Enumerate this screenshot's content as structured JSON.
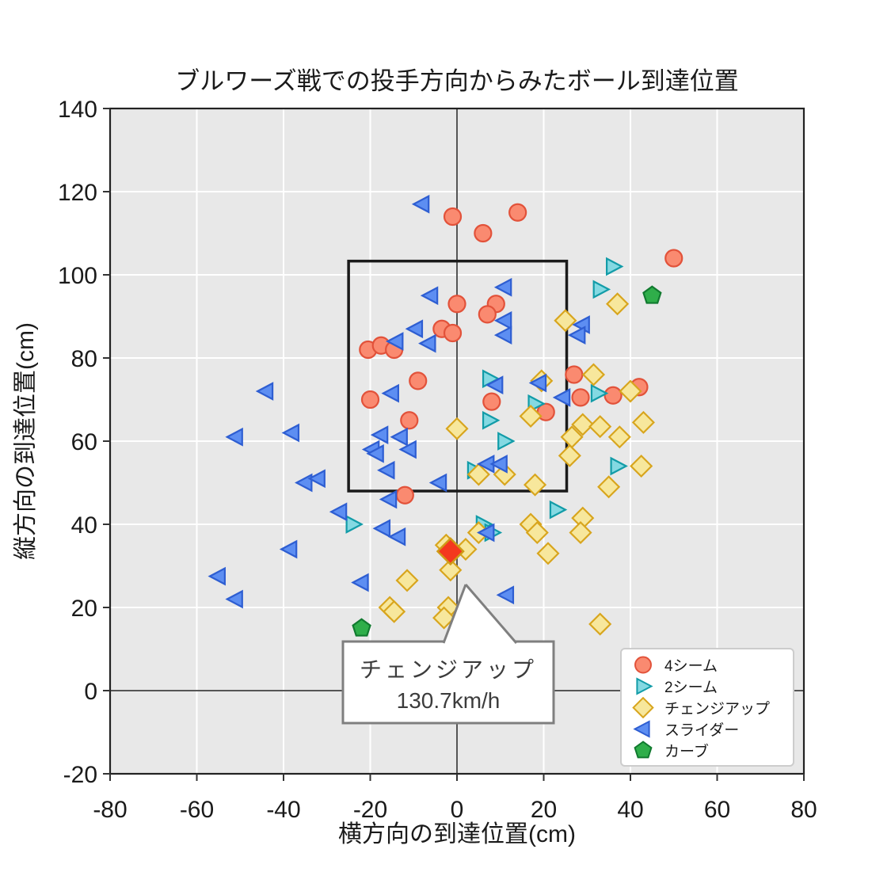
{
  "tooltip": {
    "line1": "チェンジアップ",
    "line2": "130.7km/h"
  },
  "chart_data": {
    "type": "scatter",
    "title": "ブルワーズ戦での投手方向からみたボール到達位置",
    "xlabel": "横方向の到達位置(cm)",
    "ylabel": "縦方向の到達位置(cm)",
    "xlim": [
      -80,
      80
    ],
    "ylim": [
      -20,
      140
    ],
    "xticks": [
      -80,
      -60,
      -40,
      -20,
      0,
      20,
      40,
      60,
      80
    ],
    "yticks": [
      -20,
      0,
      20,
      40,
      60,
      80,
      100,
      120,
      140
    ],
    "grid": true,
    "legend_position": "lower right",
    "plot_background": "#e8e8e8",
    "grid_color": "#ffffff",
    "zero_line_color": "#555555",
    "strike_zone": {
      "x": [
        -25,
        25.3
      ],
      "y": [
        48,
        103.3
      ],
      "color": "#1a1a1a"
    },
    "series": [
      {
        "name": "4シーム",
        "shape": "circle",
        "fill": "#fa8a70",
        "edge": "#e2523a",
        "points": [
          [
            -1,
            114
          ],
          [
            14,
            115
          ],
          [
            6,
            110
          ],
          [
            50,
            104
          ],
          [
            0,
            93
          ],
          [
            9,
            93
          ],
          [
            7,
            90.5
          ],
          [
            -3.5,
            87
          ],
          [
            -1,
            86
          ],
          [
            -20.5,
            82
          ],
          [
            -17.5,
            83
          ],
          [
            -14.5,
            82
          ],
          [
            27,
            76
          ],
          [
            -9,
            74.5
          ],
          [
            8,
            69.5
          ],
          [
            36,
            71
          ],
          [
            42,
            73
          ],
          [
            28.5,
            70.5
          ],
          [
            20.5,
            67
          ],
          [
            -20,
            70
          ],
          [
            -11,
            65
          ],
          [
            -12,
            47
          ]
        ]
      },
      {
        "name": "2シーム",
        "shape": "triangle-right",
        "fill": "#84d9e2",
        "edge": "#129ca8",
        "points": [
          [
            36,
            102
          ],
          [
            33,
            96.5
          ],
          [
            7.5,
            75
          ],
          [
            18,
            69
          ],
          [
            7.5,
            65
          ],
          [
            32.5,
            71.5
          ],
          [
            11,
            60
          ],
          [
            4,
            53
          ],
          [
            37,
            54
          ],
          [
            -24,
            40
          ],
          [
            23,
            43.5
          ],
          [
            6,
            40
          ],
          [
            8,
            38
          ]
        ]
      },
      {
        "name": "チェンジアップ",
        "shape": "diamond",
        "fill": "#f7e79c",
        "edge": "#d8a51d",
        "points": [
          [
            37,
            93
          ],
          [
            25,
            89
          ],
          [
            19.5,
            74.5
          ],
          [
            31.5,
            76
          ],
          [
            40,
            72
          ],
          [
            17,
            66
          ],
          [
            0,
            63
          ],
          [
            29,
            64
          ],
          [
            33,
            63.5
          ],
          [
            37.5,
            61
          ],
          [
            43,
            64.5
          ],
          [
            26.5,
            61
          ],
          [
            26,
            56.5
          ],
          [
            5,
            52
          ],
          [
            11,
            52
          ],
          [
            18,
            49.5
          ],
          [
            42.5,
            54
          ],
          [
            35,
            49
          ],
          [
            29,
            41.5
          ],
          [
            28.5,
            38
          ],
          [
            17,
            40
          ],
          [
            18.5,
            38
          ],
          [
            5,
            38
          ],
          [
            21,
            33
          ],
          [
            2,
            34
          ],
          [
            -2.5,
            35
          ],
          [
            -1.5,
            29
          ],
          [
            -11.5,
            26.5
          ],
          [
            -15.5,
            20
          ],
          [
            -14.5,
            19
          ],
          [
            -2,
            20
          ],
          [
            -3,
            17.5
          ],
          [
            33,
            16
          ]
        ]
      },
      {
        "name": "スライダー",
        "shape": "triangle-left",
        "fill": "#5d8ef2",
        "edge": "#2e5ed2",
        "points": [
          [
            -8,
            117
          ],
          [
            11,
            97
          ],
          [
            -6,
            95
          ],
          [
            11,
            89
          ],
          [
            29,
            88
          ],
          [
            28,
            85.5
          ],
          [
            11,
            85.5
          ],
          [
            -9.5,
            87
          ],
          [
            -14,
            84
          ],
          [
            -6.5,
            83.5
          ],
          [
            19,
            74
          ],
          [
            9,
            73.5
          ],
          [
            24.5,
            70.5
          ],
          [
            -44,
            72
          ],
          [
            -15,
            71.5
          ],
          [
            -38,
            62
          ],
          [
            -51,
            61
          ],
          [
            -17.5,
            61.5
          ],
          [
            -13,
            61
          ],
          [
            -19.5,
            58
          ],
          [
            -18.5,
            57
          ],
          [
            -11,
            58
          ],
          [
            -16,
            53
          ],
          [
            -4,
            50
          ],
          [
            -35,
            50
          ],
          [
            -32,
            51
          ],
          [
            7,
            54.5
          ],
          [
            10,
            54.5
          ],
          [
            -27,
            43
          ],
          [
            -15.5,
            46
          ],
          [
            -17,
            39
          ],
          [
            -13.5,
            37
          ],
          [
            7,
            38
          ],
          [
            -38.5,
            34
          ],
          [
            -55,
            27.5
          ],
          [
            -51,
            22
          ],
          [
            -22,
            26
          ],
          [
            11.5,
            23
          ]
        ]
      },
      {
        "name": "カーブ",
        "shape": "pentagon",
        "fill": "#2fae4a",
        "edge": "#117a2f",
        "points": [
          [
            45,
            95
          ],
          [
            -22,
            15
          ]
        ]
      }
    ],
    "selected_point": {
      "series": "チェンジアップ",
      "x": -1.5,
      "y": 33.5,
      "fill": "#f4381e",
      "edge": "#cf9b16",
      "speed_label": "130.7km/h"
    }
  }
}
